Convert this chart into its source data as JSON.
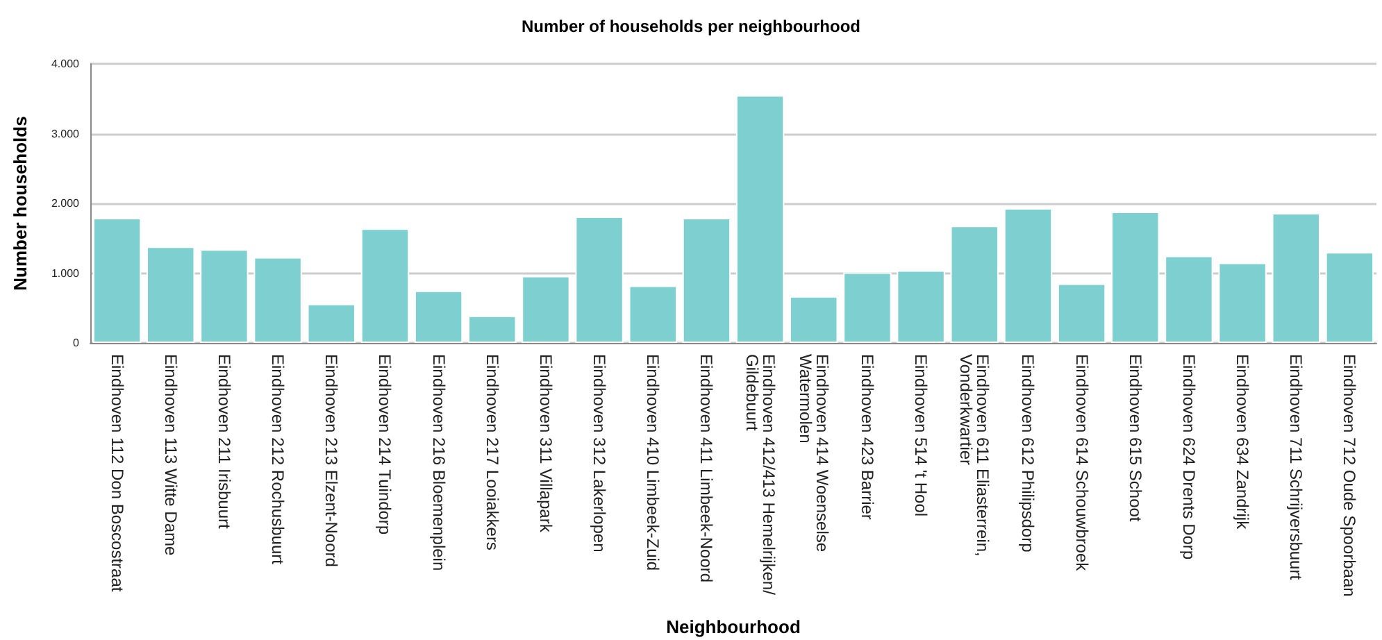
{
  "chart_data": {
    "type": "bar",
    "title": "Number of households per neighbourhood",
    "xlabel": "Neighbourhood",
    "ylabel": "Number households",
    "categories": [
      "Eindhoven 112 Don Boscostraat",
      "Eindhoven 113 Witte Dame",
      "Eindhoven 211 Irisbuurt",
      "Eindhoven 212 Rochusbuurt",
      "Eindhoven 213 Elzent-Noord",
      "Eindhoven 214 Tuindorp",
      "Eindhoven 216 Bloemenplein",
      "Eindhoven 217 Looiakkers",
      "Eindhoven 311 Villapark",
      "Eindhoven 312 Lakerlopen",
      "Eindhoven 410 Limbeek-Zuid",
      "Eindhoven 411 Limbeek-Noord",
      "Eindhoven 412/413 Hemelrijken/Gildebuurt",
      "Eindhoven 414 Woenselse Watermolen",
      "Eindhoven 423 Barrier",
      "Eindhoven 514 't Hool",
      "Eindhoven 611 Eliasterrein, Vonderkwartier",
      "Eindhoven 612 Philipsdorp",
      "Eindhoven 614 Schouwbroek",
      "Eindhoven 615 Schoot",
      "Eindhoven 624 Drents Dorp",
      "Eindhoven 634 Zandrijk",
      "Eindhoven 711 Schrijversbuurt",
      "Eindhoven 712 Oude Spoorbaan"
    ],
    "values": [
      1790,
      1380,
      1340,
      1230,
      560,
      1640,
      750,
      390,
      960,
      1810,
      820,
      1790,
      3550,
      670,
      1010,
      1040,
      1680,
      1930,
      850,
      1880,
      1250,
      1150,
      1860,
      1300
    ],
    "color": "#7ed0d0",
    "ylim": [
      0,
      4000
    ],
    "yticks": [
      0,
      {
        "value": 1000,
        "label": "1.000"
      },
      {
        "value": 2000,
        "label": "2.000"
      },
      {
        "value": 3000,
        "label": "3.000"
      },
      {
        "value": 4000,
        "label": "4.000"
      }
    ],
    "grid": "y"
  }
}
